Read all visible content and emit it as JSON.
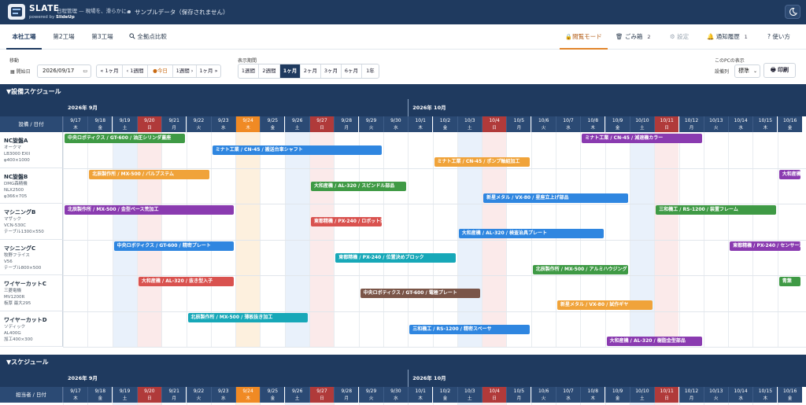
{
  "header": {
    "brand": "SLATE",
    "tagline": "日程管理 — 現場を、滑らかに。",
    "powered_prefix": "powered by",
    "powered_brand": "SlideUp",
    "sample_notice": "サンプルデータ（保存されません）"
  },
  "tabs": {
    "items": [
      {
        "label": "本社工場",
        "active": true
      },
      {
        "label": "第2工場",
        "active": false
      },
      {
        "label": "第3工場",
        "active": false
      },
      {
        "label": "全拠点比較",
        "active": false
      }
    ]
  },
  "right_tools": {
    "view_mode": "閲覧モード",
    "trash": "ごみ箱",
    "trash_count": "2",
    "settings": "設定",
    "notifications": "通知履歴",
    "notification_count": "1",
    "help": "使い方"
  },
  "toolbar": {
    "move_label": "移動",
    "start_date_label": "開始日",
    "start_date_value": "2026/09/17",
    "nav_buttons": [
      "« 1ヶ月",
      "‹ 1週間",
      "今日",
      "1週間 ›",
      "1ヶ月 »"
    ],
    "period_label": "表示期間",
    "period_buttons": [
      "1週間",
      "2週間",
      "1ヶ月",
      "2ヶ月",
      "3ヶ月",
      "6ヶ月",
      "1年"
    ],
    "period_selected": "1ヶ月",
    "pc_display_label": "このPCの表示",
    "sort_label": "設備列",
    "sort_value": "標準",
    "print_label": "印刷"
  },
  "colors": {
    "navy": "#1f3a5f",
    "today": "#f08a24",
    "holiday": "#b03a3a",
    "green": "#3f9a45",
    "blue": "#2f86e0",
    "orange": "#f0a33a",
    "purple": "#8a3bb0",
    "red": "#d9524f",
    "teal": "#17a8b8",
    "brown": "#7a5548"
  },
  "equipment_section": {
    "title": "▼設備スケジュール",
    "corner_label": "設備 / 日付",
    "months": [
      "2026年 9月",
      "2026年 10月"
    ],
    "days": [
      {
        "d": "9/17",
        "w": "木",
        "type": "wd"
      },
      {
        "d": "9/18",
        "w": "金",
        "type": "wd"
      },
      {
        "d": "9/19",
        "w": "土",
        "type": "sat"
      },
      {
        "d": "9/20",
        "w": "日",
        "type": "sun"
      },
      {
        "d": "9/21",
        "w": "月",
        "type": "wd"
      },
      {
        "d": "9/22",
        "w": "火",
        "type": "wd"
      },
      {
        "d": "9/23",
        "w": "水",
        "type": "wd"
      },
      {
        "d": "9/24",
        "w": "木",
        "type": "today"
      },
      {
        "d": "9/25",
        "w": "金",
        "type": "wd"
      },
      {
        "d": "9/26",
        "w": "土",
        "type": "sat"
      },
      {
        "d": "9/27",
        "w": "日",
        "type": "sun"
      },
      {
        "d": "9/28",
        "w": "月",
        "type": "wd"
      },
      {
        "d": "9/29",
        "w": "火",
        "type": "wd"
      },
      {
        "d": "9/30",
        "w": "水",
        "type": "wd"
      },
      {
        "d": "10/1",
        "w": "木",
        "type": "wd"
      },
      {
        "d": "10/2",
        "w": "金",
        "type": "wd"
      },
      {
        "d": "10/3",
        "w": "土",
        "type": "sat"
      },
      {
        "d": "10/4",
        "w": "日",
        "type": "sun"
      },
      {
        "d": "10/5",
        "w": "月",
        "type": "wd"
      },
      {
        "d": "10/6",
        "w": "火",
        "type": "wd"
      },
      {
        "d": "10/7",
        "w": "水",
        "type": "wd"
      },
      {
        "d": "10/8",
        "w": "木",
        "type": "wd"
      },
      {
        "d": "10/9",
        "w": "金",
        "type": "wd"
      },
      {
        "d": "10/10",
        "w": "土",
        "type": "sat"
      },
      {
        "d": "10/11",
        "w": "日",
        "type": "sun"
      },
      {
        "d": "10/12",
        "w": "月",
        "type": "wd"
      },
      {
        "d": "10/13",
        "w": "火",
        "type": "wd"
      },
      {
        "d": "10/14",
        "w": "水",
        "type": "wd"
      },
      {
        "d": "10/15",
        "w": "木",
        "type": "wd"
      },
      {
        "d": "10/16",
        "w": "金",
        "type": "wd"
      }
    ],
    "rows": [
      {
        "name": "NC旋盤A",
        "sub": [
          "オークマ",
          "LB3000 EXII",
          "φ400×1000"
        ]
      },
      {
        "name": "NC旋盤B",
        "sub": [
          "DMG森精機",
          "NLX2500",
          "φ366×705"
        ]
      },
      {
        "name": "マシニングB",
        "sub": [
          "マザック",
          "VCN-530C",
          "テーブル1300×550"
        ]
      },
      {
        "name": "マシニングC",
        "sub": [
          "牧野フライス",
          "V56",
          "テーブル800×500"
        ]
      },
      {
        "name": "ワイヤーカットC",
        "sub": [
          "三菱電機",
          "MV1200R",
          "板厚 最大295"
        ]
      },
      {
        "name": "ワイヤーカットD",
        "sub": [
          "ソディック",
          "AL400G",
          "加工400×300"
        ]
      }
    ],
    "bars": [
      {
        "label": "中央ロボティクス / GT-600 / 油圧シリンダ蓋座",
        "row": 0,
        "lane": 0,
        "start": "9/17",
        "end": "9/21",
        "color": "green"
      },
      {
        "label": "ミナト工業 / CN-45 / 搬送台車シャフト",
        "row": 0,
        "lane": 1,
        "start": "9/23",
        "end": "9/29",
        "color": "blue"
      },
      {
        "label": "ミナト工業 / CN-45 / ポンプ軸組加工",
        "row": 0,
        "lane": 2,
        "start": "10/2",
        "end": "10/5",
        "color": "orange"
      },
      {
        "label": "ミナト工業 / CN-45 / 減速機カラー",
        "row": 0,
        "lane": 0,
        "start": "10/8",
        "end": "10/12",
        "color": "purple"
      },
      {
        "label": "北辰製作所 / MX-500 / バルブステム",
        "row": 1,
        "lane": 0,
        "start": "9/18",
        "end": "9/22",
        "color": "orange"
      },
      {
        "label": "大和産機 / AL-320 / スピンドル部品",
        "row": 1,
        "lane": 1,
        "start": "9/27",
        "end": "9/30",
        "color": "green"
      },
      {
        "label": "新星メタル / VX-80 / 星座立上げ部品",
        "row": 1,
        "lane": 2,
        "start": "10/4",
        "end": "10/9",
        "color": "blue"
      },
      {
        "label": "大和産機 / AL-320 / 補修用",
        "row": 1,
        "lane": 0,
        "start": "10/16",
        "end": "10/16",
        "color": "purple"
      },
      {
        "label": "北辰製作所 / MX-500 / 金型ベース荒加工",
        "row": 2,
        "lane": 0,
        "start": "9/17",
        "end": "9/23",
        "color": "purple"
      },
      {
        "label": "東都精機 / PX-240 / ロボット架台",
        "row": 2,
        "lane": 1,
        "start": "9/27",
        "end": "9/29",
        "color": "red"
      },
      {
        "label": "大和産機 / AL-320 / 検査治具プレート",
        "row": 2,
        "lane": 2,
        "start": "10/3",
        "end": "10/8",
        "color": "blue"
      },
      {
        "label": "三和機工 / RS-1200 / 装置フレーム",
        "row": 2,
        "lane": 0,
        "start": "10/11",
        "end": "10/15",
        "color": "green"
      },
      {
        "label": "中央ロボティクス / GT-600 / 精密プレート",
        "row": 3,
        "lane": 0,
        "start": "9/19",
        "end": "9/23",
        "color": "blue"
      },
      {
        "label": "東都精機 / PX-240 / 位置決めブロック",
        "row": 3,
        "lane": 1,
        "start": "9/28",
        "end": "10/2",
        "color": "teal"
      },
      {
        "label": "北辰製作所 / MX-500 / アルミハウジング",
        "row": 3,
        "lane": 2,
        "start": "10/6",
        "end": "10/9",
        "color": "green"
      },
      {
        "label": "東都精機 / PX-240 / センサー治具",
        "row": 3,
        "lane": 0,
        "start": "10/14",
        "end": "10/16",
        "color": "purple"
      },
      {
        "label": "大和産機 / AL-320 / 抜き型入子",
        "row": 4,
        "lane": 0,
        "start": "9/20",
        "end": "9/23",
        "color": "red"
      },
      {
        "label": "中央ロボティクス / GT-600 / 電極プレート",
        "row": 4,
        "lane": 1,
        "start": "9/29",
        "end": "10/3",
        "color": "brown"
      },
      {
        "label": "新星メタル / VX-80 / 試作ギヤ",
        "row": 4,
        "lane": 2,
        "start": "10/7",
        "end": "10/10",
        "color": "orange"
      },
      {
        "label": "青葉",
        "row": 4,
        "lane": 0,
        "start": "10/16",
        "end": "10/16",
        "color": "green"
      },
      {
        "label": "北辰製作所 / MX-500 / 薄板抜き加工",
        "row": 5,
        "lane": 0,
        "start": "9/22",
        "end": "9/26",
        "color": "teal"
      },
      {
        "label": "三和機工 / RS-1200 / 精密スペーサ",
        "row": 5,
        "lane": 1,
        "start": "10/1",
        "end": "10/5",
        "color": "blue"
      },
      {
        "label": "大和産機 / AL-320 / 樹脂金型部品",
        "row": 5,
        "lane": 2,
        "start": "10/9",
        "end": "10/12",
        "color": "purple"
      }
    ]
  },
  "staff_section": {
    "title": "▼スケジュール",
    "corner_label": "担当者 / 日付",
    "months": [
      "2026年 9月",
      "2026年 10月"
    ]
  }
}
